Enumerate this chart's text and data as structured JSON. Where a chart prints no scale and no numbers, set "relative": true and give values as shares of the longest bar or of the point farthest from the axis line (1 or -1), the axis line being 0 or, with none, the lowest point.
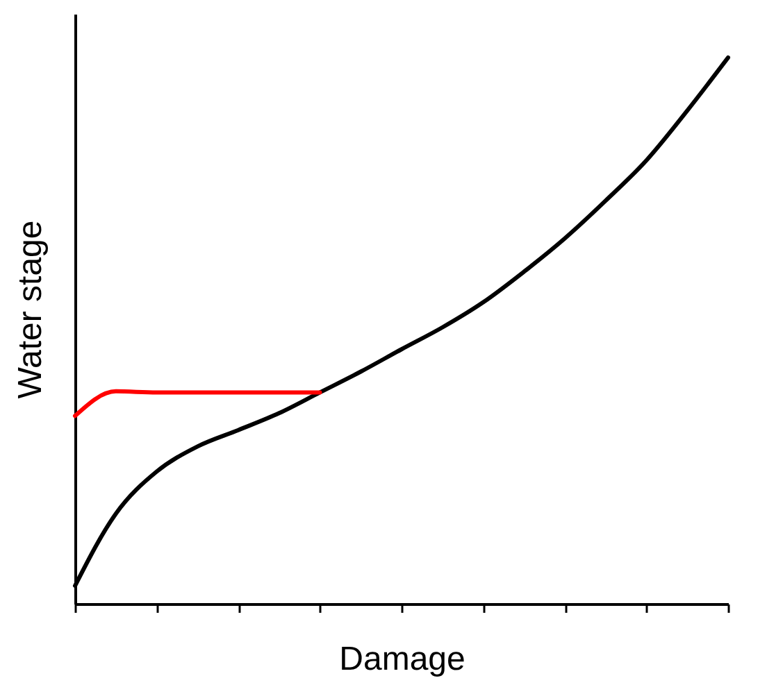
{
  "chart_data": {
    "type": "line",
    "relative": true,
    "xlabel": "Damage",
    "ylabel": "Water stage",
    "grid": false,
    "marker": "none",
    "line_style": "solid",
    "categories": [
      null,
      null,
      null,
      null,
      null,
      null,
      null,
      null,
      null,
      null,
      null,
      null,
      null,
      null,
      null,
      null,
      null
    ],
    "series": [
      {
        "color": "#000000",
        "values": [
          0.033,
          0.165,
          0.242,
          0.288,
          0.318,
          0.349,
          0.387,
          0.425,
          0.466,
          0.506,
          0.552,
          0.608,
          0.669,
          0.738,
          0.812,
          0.903,
          1
        ]
      },
      {
        "color": "#ff0000",
        "values": [
          0.344,
          0.389,
          0.387,
          0.387,
          0.387,
          0.387,
          0.387,
          null,
          null,
          null,
          null,
          null,
          null,
          null,
          null,
          null,
          null
        ]
      }
    ]
  }
}
